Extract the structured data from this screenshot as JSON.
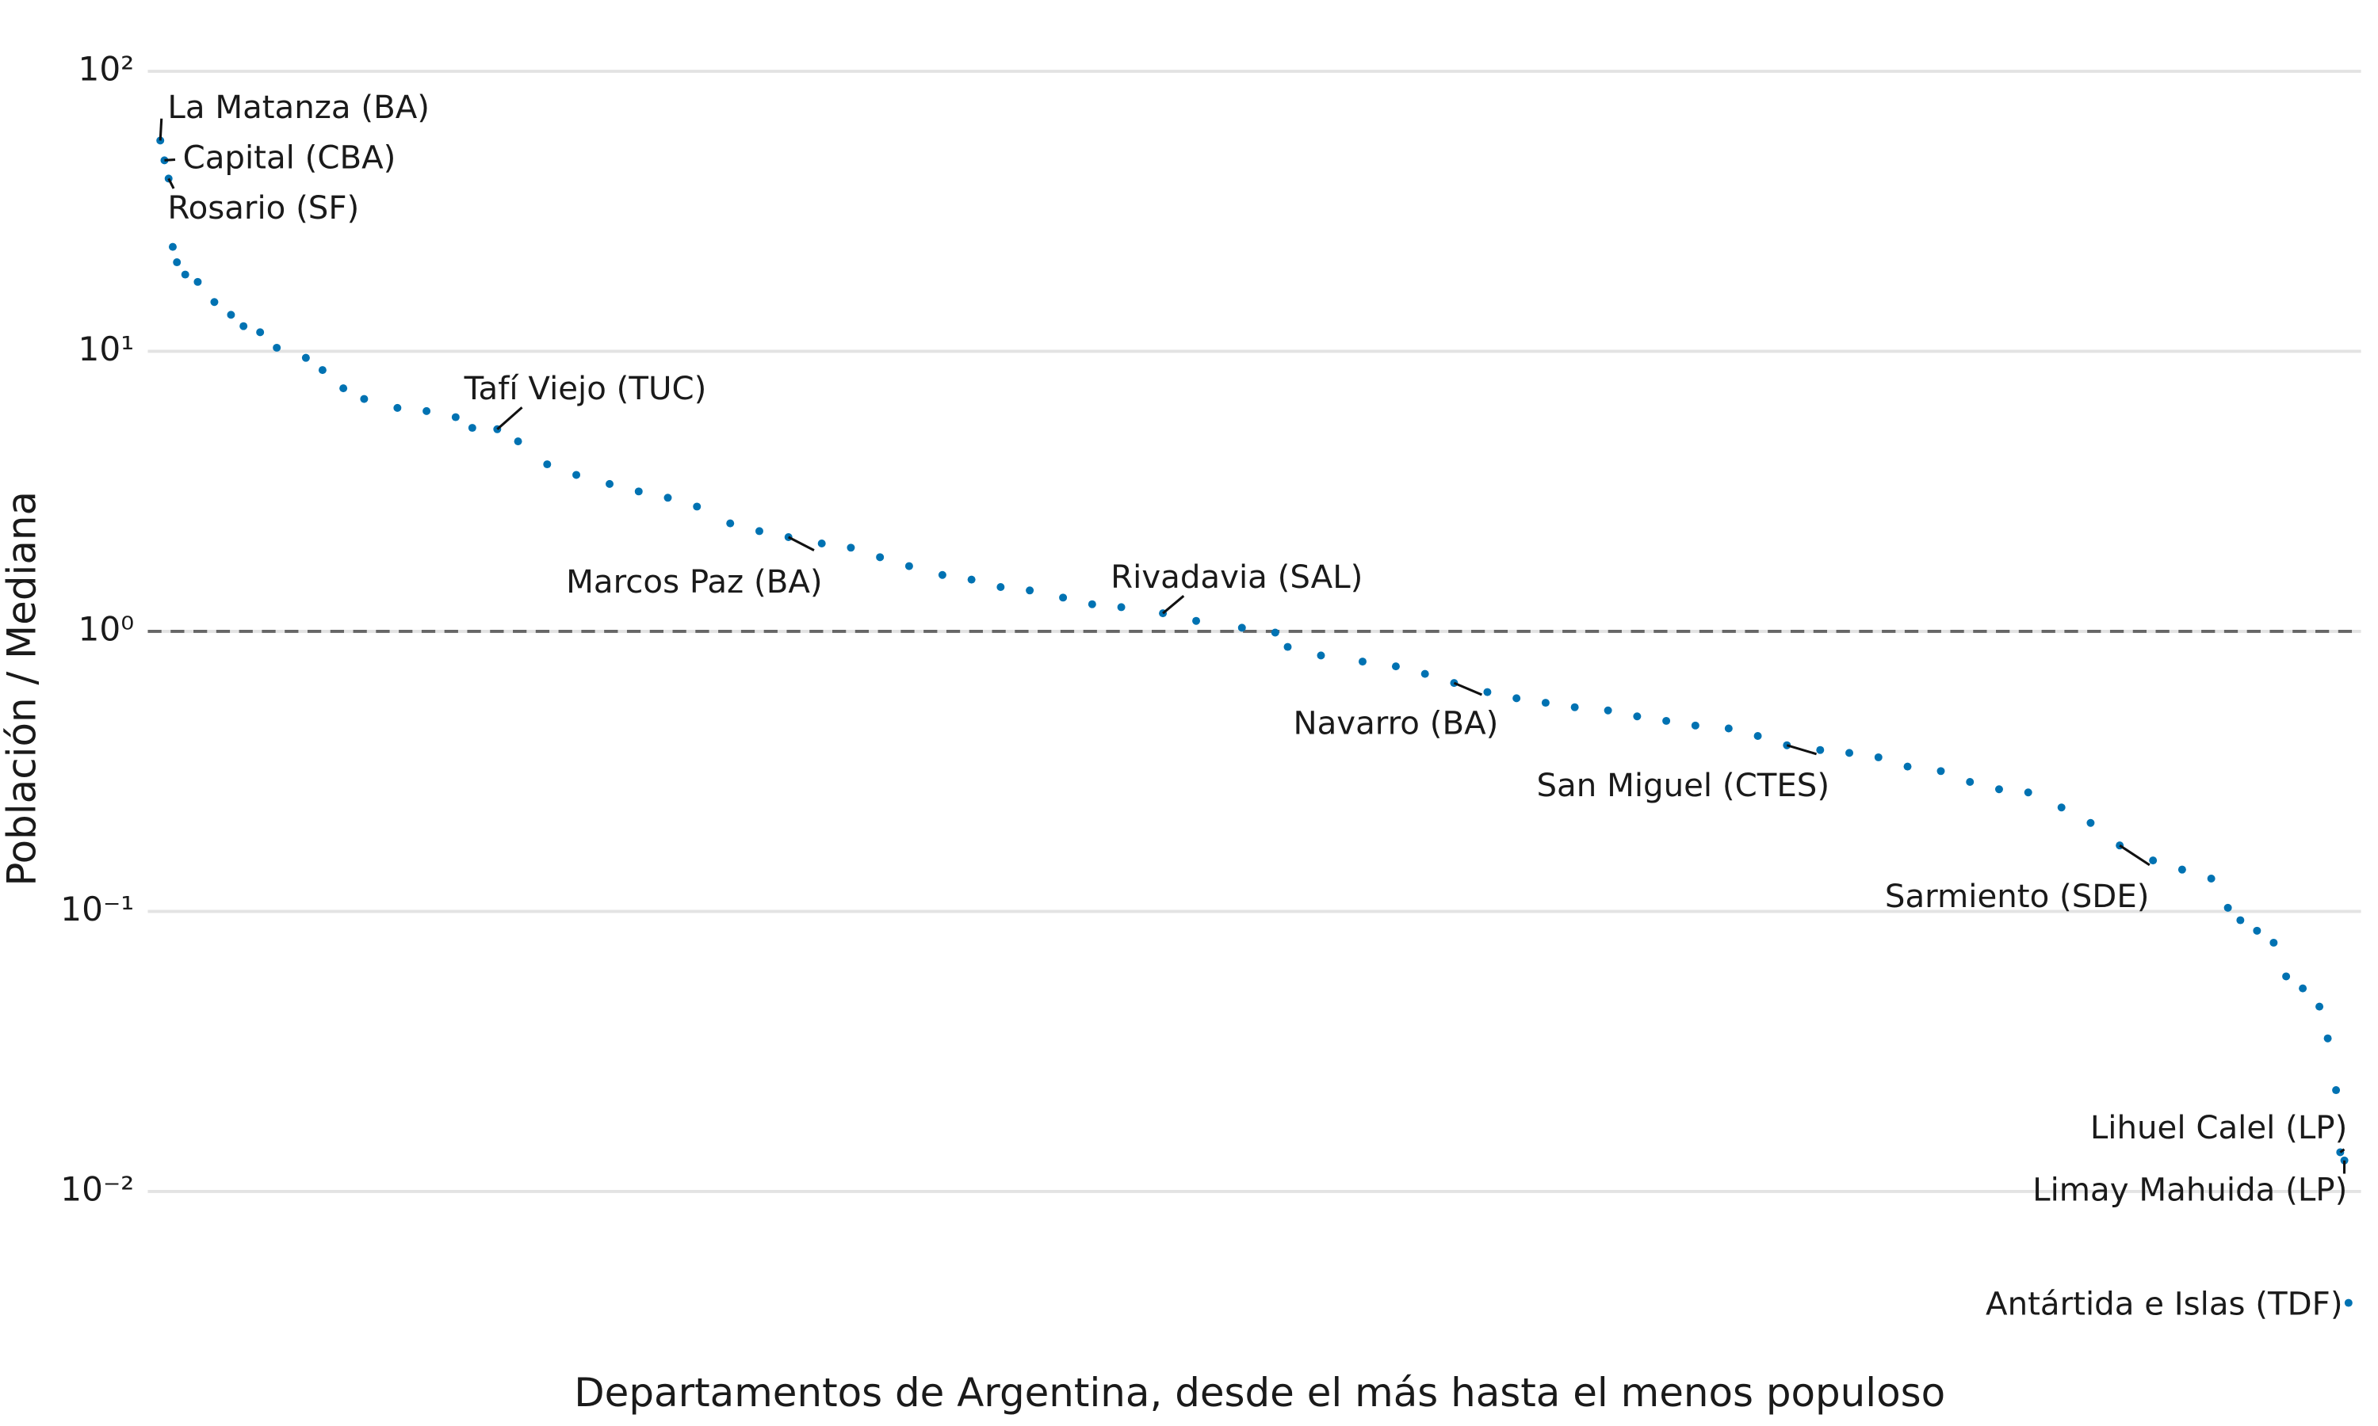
{
  "chart_data": {
    "type": "scatter",
    "x_label": "Departamentos de Argentina, desde el más hasta el menos populoso",
    "y_label": "Población / Mediana",
    "y_scale": "log",
    "grid": true,
    "color": "#0072b2",
    "reference_line": 1,
    "xlim": [
      -2,
      530
    ],
    "ylim": [
      0.0034,
      109
    ],
    "yticks": [
      {
        "value": 100,
        "label": "10²"
      },
      {
        "value": 10,
        "label": "10¹"
      },
      {
        "value": 1,
        "label": "10⁰"
      },
      {
        "value": 0.1,
        "label": "10⁻¹"
      },
      {
        "value": 0.01,
        "label": "10⁻²"
      }
    ],
    "x": [
      1,
      2,
      3,
      4,
      5,
      7,
      10,
      14,
      18,
      21,
      25,
      29,
      36,
      40,
      45,
      50,
      58,
      65,
      72,
      76,
      82,
      87,
      94,
      101,
      109,
      116,
      123,
      130,
      138,
      145,
      152,
      160,
      167,
      174,
      181,
      189,
      196,
      203,
      210,
      218,
      225,
      232,
      242,
      250,
      261,
      269,
      272,
      280,
      290,
      298,
      305,
      312,
      320,
      327,
      334,
      341,
      349,
      356,
      363,
      370,
      378,
      385,
      392,
      400,
      407,
      414,
      421,
      429,
      436,
      443,
      450,
      458,
      465,
      472,
      480,
      487,
      494,
      498,
      501,
      505,
      509,
      512,
      516,
      520,
      522,
      524,
      525,
      526,
      527
    ],
    "values": [
      56.6,
      48.1,
      41.4,
      23.6,
      20.8,
      18.8,
      17.7,
      15.0,
      13.5,
      12.3,
      11.7,
      10.3,
      9.48,
      8.57,
      7.38,
      6.76,
      6.28,
      6.12,
      5.82,
      5.33,
      5.27,
      4.77,
      3.95,
      3.62,
      3.36,
      3.16,
      3.0,
      2.79,
      2.43,
      2.28,
      2.17,
      2.06,
      1.99,
      1.84,
      1.71,
      1.59,
      1.53,
      1.44,
      1.4,
      1.32,
      1.25,
      1.22,
      1.16,
      1.09,
      1.03,
      0.99,
      0.88,
      0.82,
      0.78,
      0.75,
      0.705,
      0.654,
      0.607,
      0.577,
      0.556,
      0.536,
      0.522,
      0.497,
      0.479,
      0.461,
      0.45,
      0.423,
      0.392,
      0.377,
      0.368,
      0.355,
      0.329,
      0.317,
      0.29,
      0.273,
      0.266,
      0.235,
      0.207,
      0.172,
      0.152,
      0.141,
      0.131,
      0.103,
      0.093,
      0.0853,
      0.0773,
      0.0586,
      0.0531,
      0.0457,
      0.0352,
      0.023,
      0.0138,
      0.0129,
      0.004
    ],
    "annotations": [
      {
        "text": "La Matanza (BA)",
        "index": 0
      },
      {
        "text": "Capital (CBA)",
        "index": 1
      },
      {
        "text": "Rosario (SF)",
        "index": 2
      },
      {
        "text": "Tafí Viejo (TUC)",
        "index": 20
      },
      {
        "text": "Marcos Paz (BA)",
        "index": 30
      },
      {
        "text": "Rivadavia (SAL)",
        "index": 42
      },
      {
        "text": "Navarro (BA)",
        "index": 51
      },
      {
        "text": "San Miguel (CTES)",
        "index": 62
      },
      {
        "text": "Sarmiento (SDE)",
        "index": 73
      },
      {
        "text": "Lihuel Calel (LP)",
        "index": 86
      },
      {
        "text": "Limay Mahuida (LP)",
        "index": 87
      },
      {
        "text": "Antártida e Islas (TDF)",
        "index": 88
      }
    ]
  }
}
